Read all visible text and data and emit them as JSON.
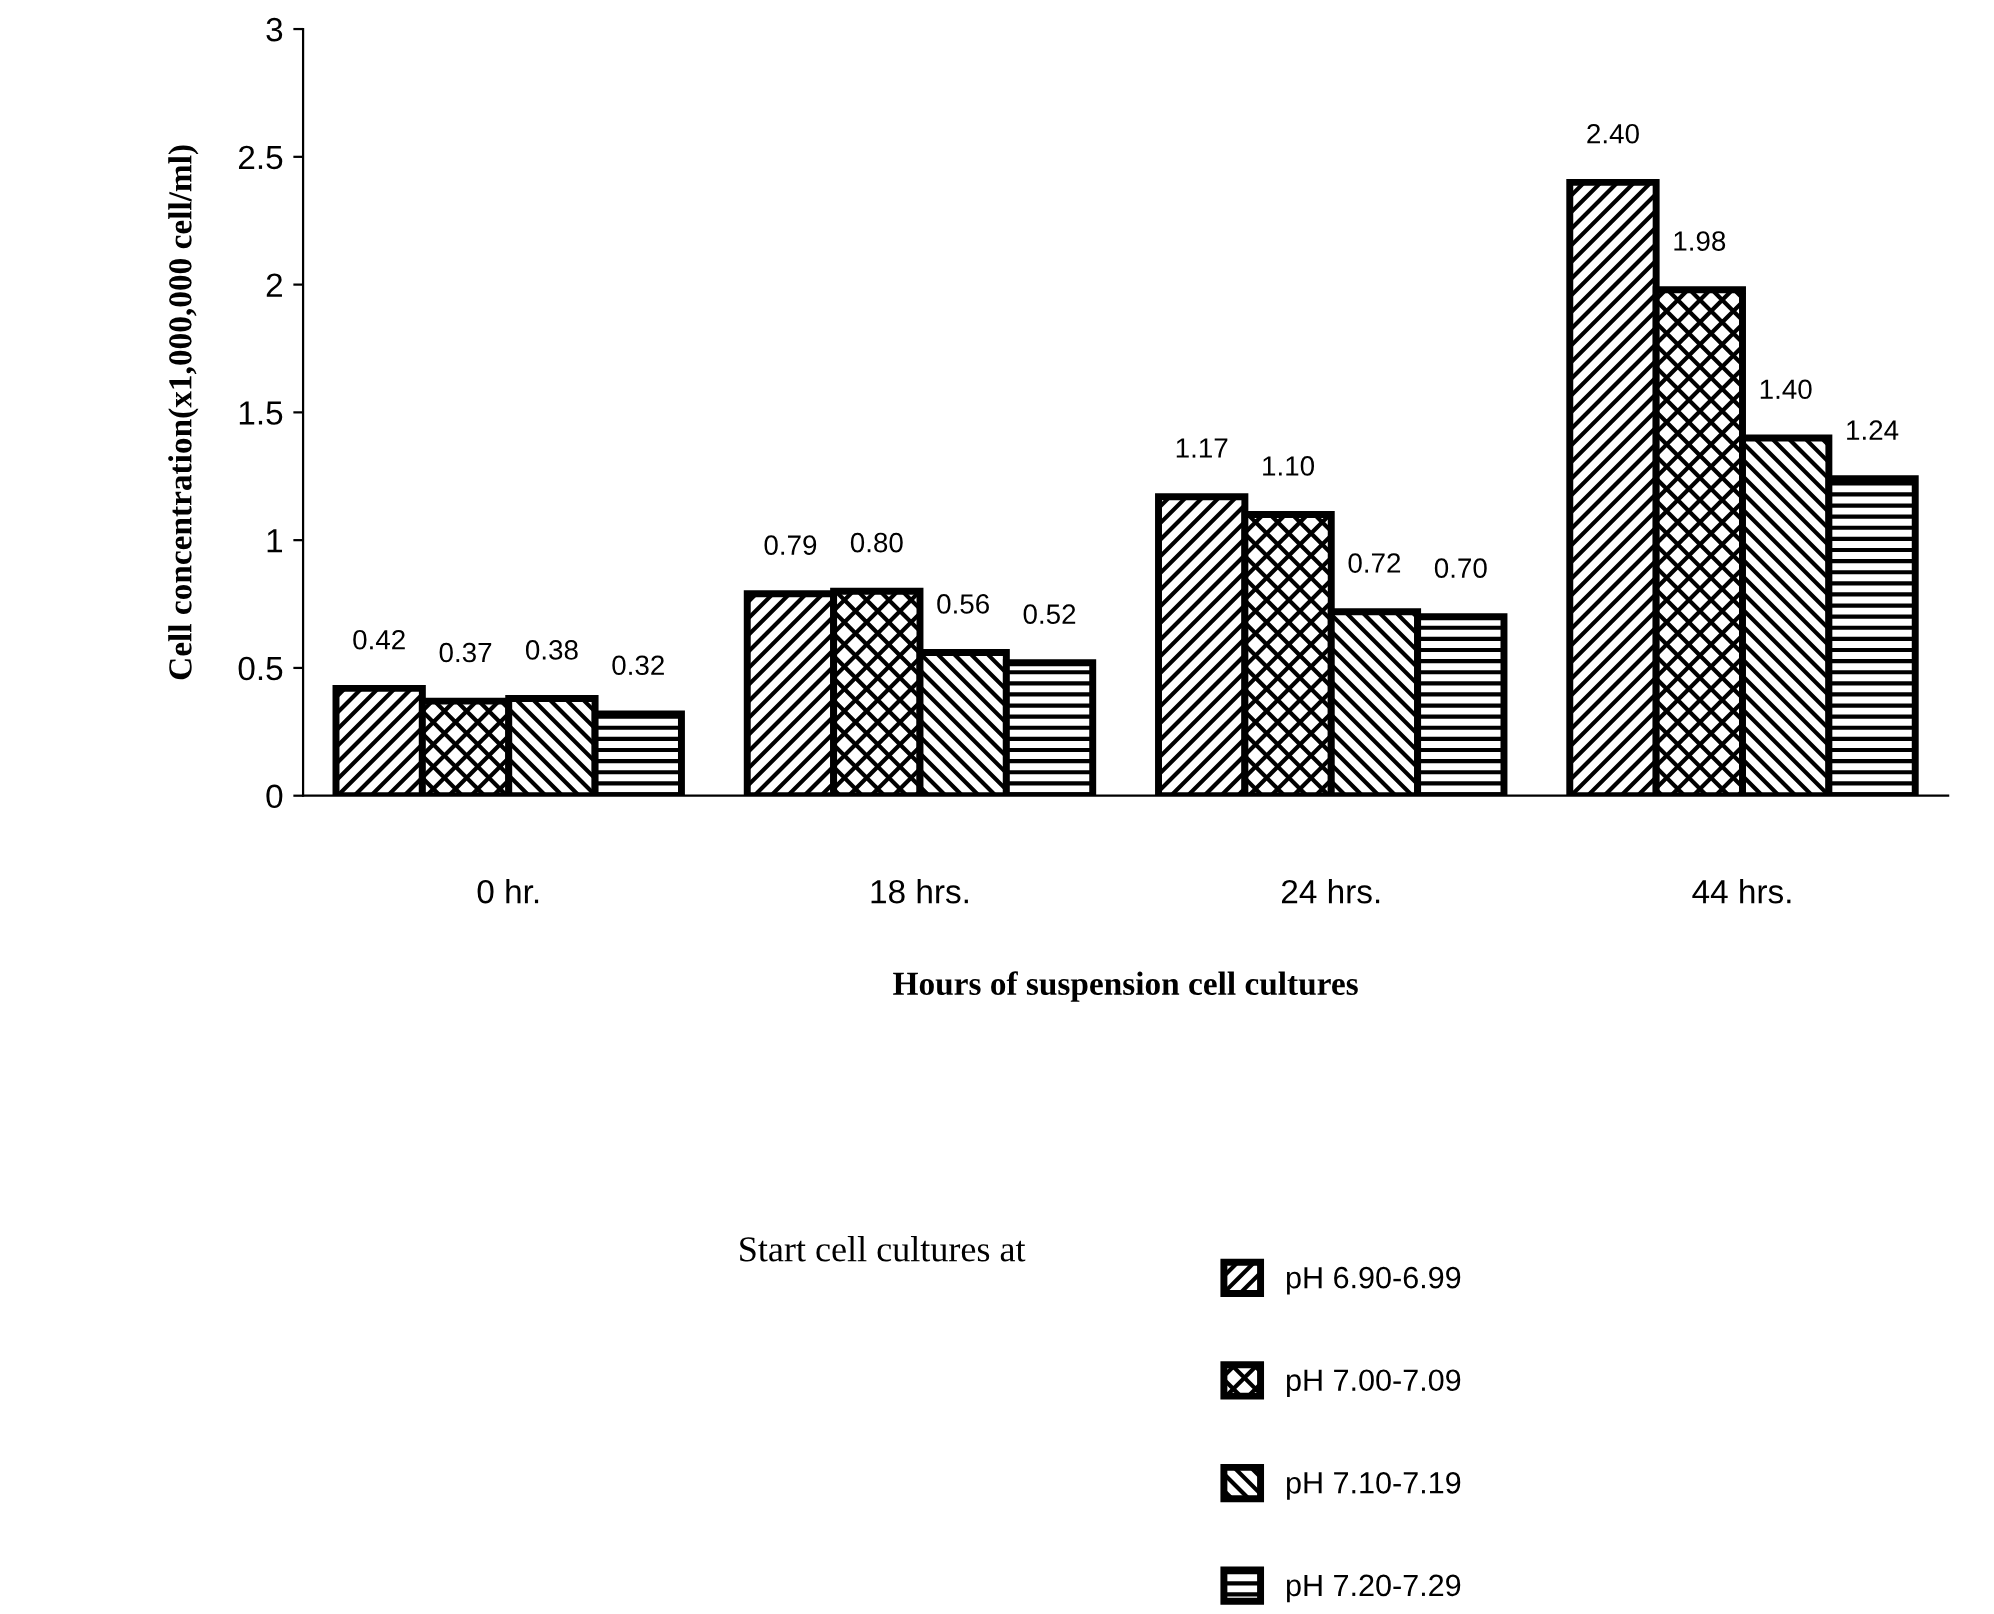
{
  "chart_data": {
    "type": "bar",
    "xlabel": "Hours of suspension cell cultures",
    "ylabel": "Cell concentration(x1,000,000 cell/ml)",
    "legend_title": "Start cell cultures at",
    "categories": [
      "0 hr.",
      "18 hrs.",
      "24 hrs.",
      "44 hrs."
    ],
    "series": [
      {
        "name": "pH 6.90-6.99",
        "color": "#000000",
        "values": [
          0.42,
          0.79,
          1.17,
          2.4
        ],
        "value_labels": [
          "0.42",
          "0.79",
          "1.17",
          "2.40"
        ]
      },
      {
        "name": "pH 7.00-7.09",
        "color": "#000000",
        "values": [
          0.37,
          0.8,
          1.1,
          1.98
        ],
        "value_labels": [
          "0.37",
          "0.80",
          "1.10",
          "1.98"
        ]
      },
      {
        "name": "pH 7.10-7.19",
        "color": "#000000",
        "values": [
          0.38,
          0.56,
          0.72,
          1.4
        ],
        "value_labels": [
          "0.38",
          "0.56",
          "0.72",
          "1.40"
        ]
      },
      {
        "name": "pH 7.20-7.29",
        "color": "#000000",
        "values": [
          0.32,
          0.52,
          0.7,
          1.24
        ],
        "value_labels": [
          "0.32",
          "0.52",
          "0.70",
          "1.24"
        ]
      }
    ],
    "ylim": [
      0,
      3
    ],
    "yticks": [
      0,
      0.5,
      1,
      1.5,
      2,
      2.5,
      3
    ],
    "grid": false,
    "legend": "bottom"
  }
}
